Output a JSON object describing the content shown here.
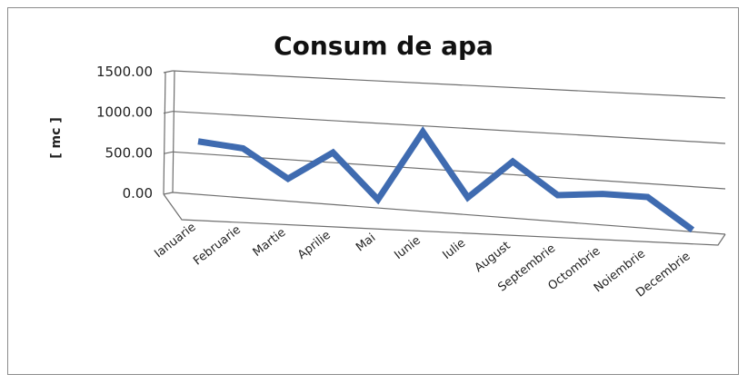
{
  "chart_data": {
    "type": "line",
    "title": "Consum de apa",
    "xlabel": "",
    "ylabel": "[ mc ]",
    "ylim": [
      0,
      1500
    ],
    "yticks": [
      "0.00",
      "500.00",
      "1000.00",
      "1500.00"
    ],
    "categories": [
      "Ianuarie",
      "Februarie",
      "Martie",
      "Aprilie",
      "Mai",
      "Iunie",
      "Iulie",
      "August",
      "Septembrie",
      "Octombrie",
      "Noiembrie",
      "Decembrie"
    ],
    "values": [
      650,
      600,
      270,
      620,
      100,
      930,
      200,
      650,
      300,
      350,
      350,
      20
    ],
    "grid": true,
    "legend": "none",
    "colors": {
      "series": "#3f6bb0",
      "grid": "#6e6e6e"
    }
  }
}
